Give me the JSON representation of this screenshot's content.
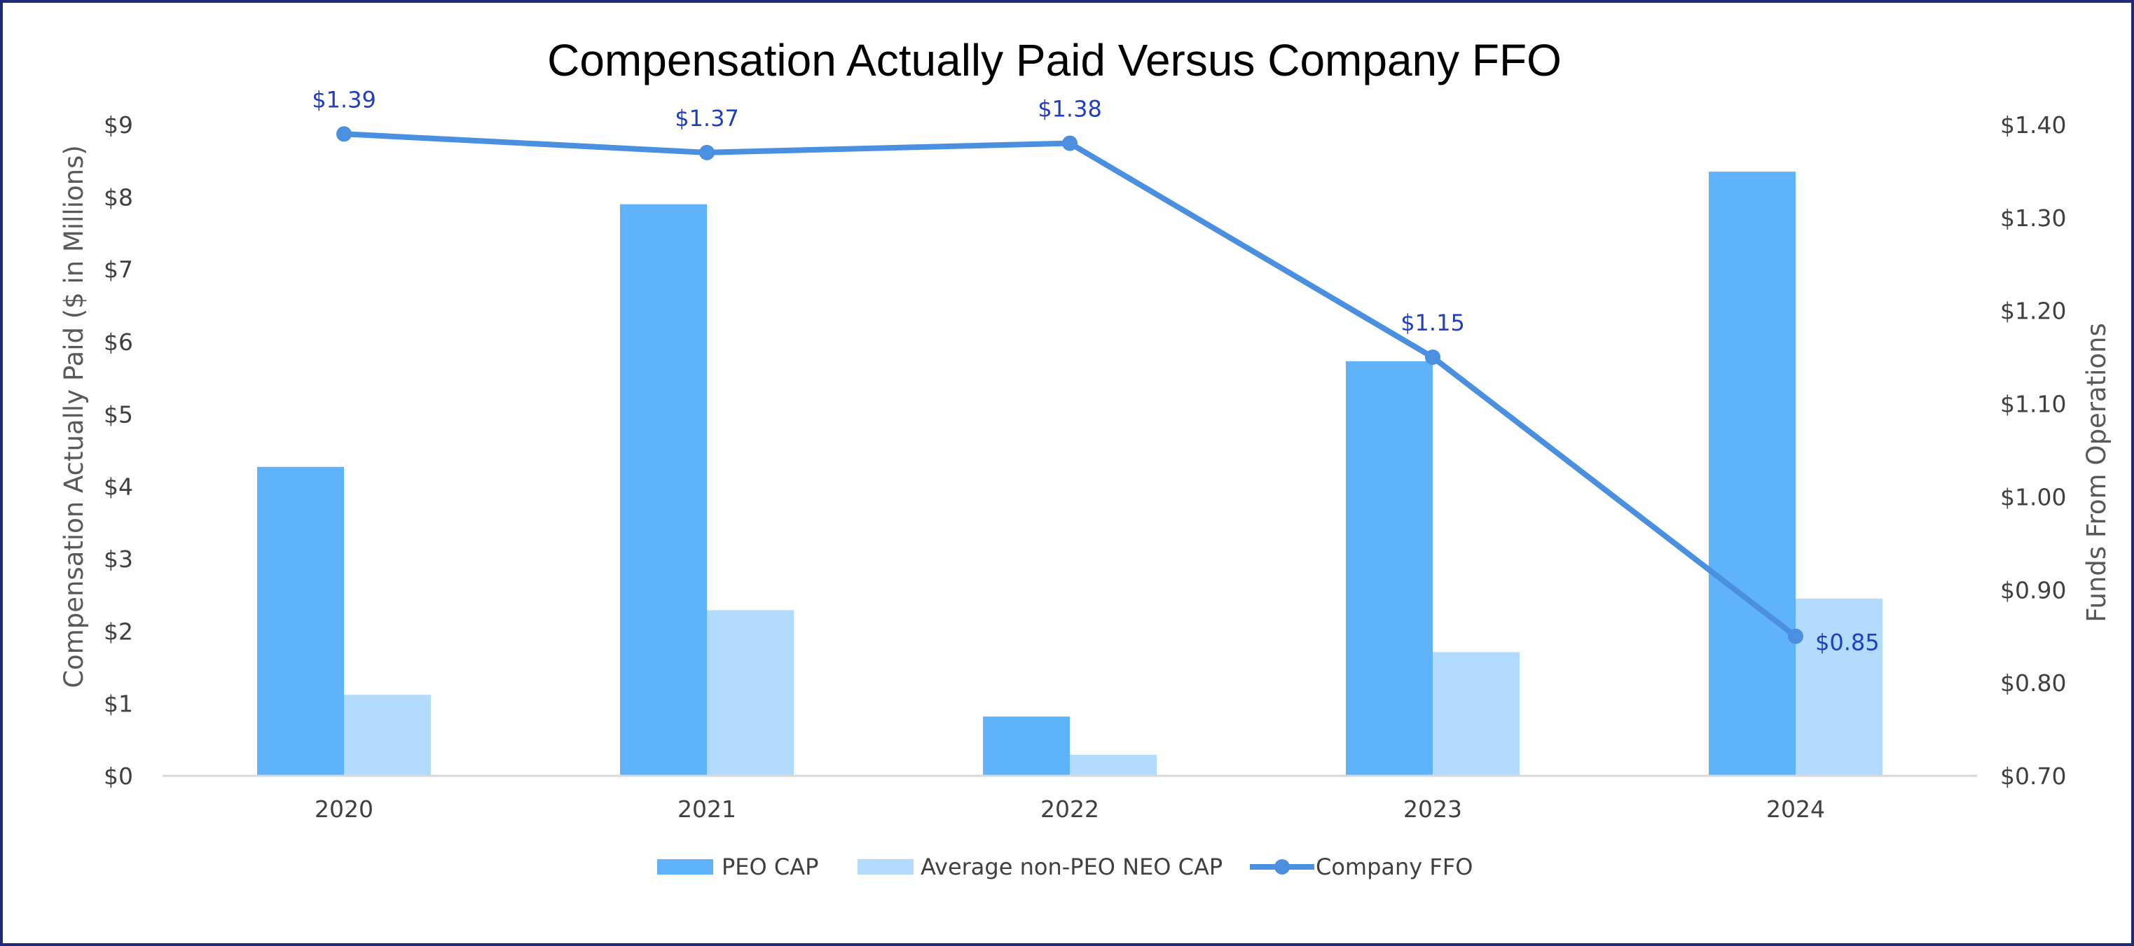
{
  "chart_data": {
    "type": "bar",
    "title": "Compensation Actually Paid Versus Company FFO",
    "categories": [
      "2020",
      "2021",
      "2022",
      "2023",
      "2024"
    ],
    "ylabel": "Compensation Actually Paid ($ in Millions)",
    "y2label": "Funds From Operations",
    "ylim": [
      0,
      9
    ],
    "y2lim": [
      0.7,
      1.4
    ],
    "yticks": [
      "$0",
      "$1",
      "$2",
      "$3",
      "$4",
      "$5",
      "$6",
      "$7",
      "$8",
      "$9"
    ],
    "y2ticks": [
      "$0.70",
      "$0.80",
      "$0.90",
      "$1.00",
      "$1.10",
      "$1.20",
      "$1.30",
      "$1.40"
    ],
    "grid": false,
    "legend_position": "bottom",
    "series": [
      {
        "name": "PEO CAP",
        "type": "bar",
        "axis": "left",
        "color": "#5eb3fb",
        "values": [
          4.27,
          7.9,
          0.82,
          5.73,
          8.35
        ]
      },
      {
        "name": "Average non-PEO NEO CAP",
        "type": "bar",
        "axis": "left",
        "color": "#b3dbfd",
        "values": [
          1.12,
          2.29,
          0.29,
          1.71,
          2.45
        ]
      },
      {
        "name": "Company FFO",
        "type": "line",
        "axis": "right",
        "color": "#4a8fe0",
        "values": [
          1.39,
          1.37,
          1.38,
          1.15,
          0.85
        ],
        "labels": [
          "$1.39",
          "$1.37",
          "$1.38",
          "$1.15",
          "$0.85"
        ]
      }
    ],
    "label_color": "#1f3fc0"
  }
}
